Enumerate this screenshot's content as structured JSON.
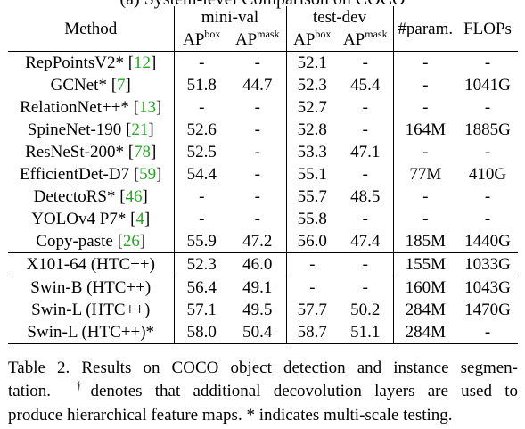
{
  "cut_heading": "(a) System-level Comparison on COCO",
  "columns": {
    "method": "Method",
    "mini_val": "mini-val",
    "test_dev": "test-dev",
    "ap": "AP",
    "box": "box",
    "mask": "mask",
    "param": "#param.",
    "flops": "FLOPs"
  },
  "rows": [
    {
      "name": "RepPointsV2*",
      "cite": "12",
      "mv_box": "-",
      "mv_mask": "-",
      "td_box": "52.1",
      "td_mask": "-",
      "param": "-",
      "flops": "-"
    },
    {
      "name": "GCNet*",
      "cite": "7",
      "mv_box": "51.8",
      "mv_mask": "44.7",
      "td_box": "52.3",
      "td_mask": "45.4",
      "param": "-",
      "flops": "1041G"
    },
    {
      "name": "RelationNet++*",
      "cite": "13",
      "mv_box": "-",
      "mv_mask": "-",
      "td_box": "52.7",
      "td_mask": "-",
      "param": "-",
      "flops": "-"
    },
    {
      "name": "SpineNet-190",
      "cite": "21",
      "mv_box": "52.6",
      "mv_mask": "-",
      "td_box": "52.8",
      "td_mask": "-",
      "param": "164M",
      "flops": "1885G"
    },
    {
      "name": "ResNeSt-200*",
      "cite": "78",
      "mv_box": "52.5",
      "mv_mask": "-",
      "td_box": "53.3",
      "td_mask": "47.1",
      "param": "-",
      "flops": "-"
    },
    {
      "name": "EfficientDet-D7",
      "cite": "59",
      "mv_box": "54.4",
      "mv_mask": "-",
      "td_box": "55.1",
      "td_mask": "-",
      "param": "77M",
      "flops": "410G"
    },
    {
      "name": "DetectoRS*",
      "cite": "46",
      "mv_box": "-",
      "mv_mask": "-",
      "td_box": "55.7",
      "td_mask": "48.5",
      "param": "-",
      "flops": "-"
    },
    {
      "name": "YOLOv4 P7*",
      "cite": "4",
      "mv_box": "-",
      "mv_mask": "-",
      "td_box": "55.8",
      "td_mask": "-",
      "param": "-",
      "flops": "-"
    },
    {
      "name": "Copy-paste",
      "cite": "26",
      "mv_box": "55.9",
      "mv_mask": "47.2",
      "td_box": "56.0",
      "td_mask": "47.4",
      "param": "185M",
      "flops": "1440G"
    },
    {
      "name": "X101-64 (HTC++)",
      "cite": "",
      "mv_box": "52.3",
      "mv_mask": "46.0",
      "td_box": "-",
      "td_mask": "-",
      "param": "155M",
      "flops": "1033G"
    },
    {
      "name": "Swin-B (HTC++)",
      "cite": "",
      "mv_box": "56.4",
      "mv_mask": "49.1",
      "td_box": "-",
      "td_mask": "-",
      "param": "160M",
      "flops": "1043G"
    },
    {
      "name": "Swin-L (HTC++)",
      "cite": "",
      "mv_box": "57.1",
      "mv_mask": "49.5",
      "td_box": "57.7",
      "td_mask": "50.2",
      "param": "284M",
      "flops": "1470G"
    },
    {
      "name": "Swin-L (HTC++)*",
      "cite": "",
      "mv_box": "58.0",
      "mv_mask": "50.4",
      "td_box": "58.7",
      "td_mask": "51.1",
      "param": "284M",
      "flops": "-"
    }
  ],
  "caption": {
    "line1": "Table 2. Results on COCO object detection and instance segmen-",
    "line2_a": "tation.",
    "dagger": "†",
    "line2_b": "denotes that additional decovolution layers are used to",
    "line3": "produce hierarchical feature maps. * indicates multi-scale testing."
  }
}
